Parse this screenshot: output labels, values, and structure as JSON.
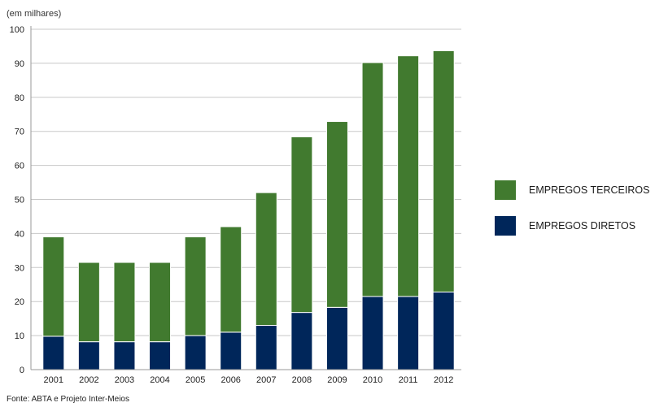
{
  "chart_data": {
    "type": "bar",
    "stacked": true,
    "unit_label": "(em milhares)",
    "title": "",
    "xlabel": "",
    "ylabel": "",
    "categories": [
      "2001",
      "2002",
      "2003",
      "2004",
      "2005",
      "2006",
      "2007",
      "2008",
      "2009",
      "2010",
      "2011",
      "2012"
    ],
    "ylim": [
      0,
      100
    ],
    "yticks": [
      0,
      10,
      20,
      30,
      40,
      50,
      60,
      70,
      80,
      90,
      100
    ],
    "grid": true,
    "legend_position": "right",
    "series": [
      {
        "name": "EMPREGOS DIRETOS",
        "color": "#00265a",
        "values": [
          9.8,
          8.2,
          8.2,
          8.2,
          10,
          11,
          13,
          16.8,
          18.3,
          21.5,
          21.5,
          22.8
        ]
      },
      {
        "name": "EMPREGOS TERCEIROS",
        "color": "#417a2f",
        "values": [
          29.2,
          23.3,
          23.3,
          23.3,
          29,
          31,
          39,
          51.6,
          54.6,
          68.7,
          70.7,
          70.9
        ]
      }
    ],
    "legend_order": [
      1,
      0
    ],
    "source": "Fonte: ABTA e Projeto Inter-Meios"
  }
}
